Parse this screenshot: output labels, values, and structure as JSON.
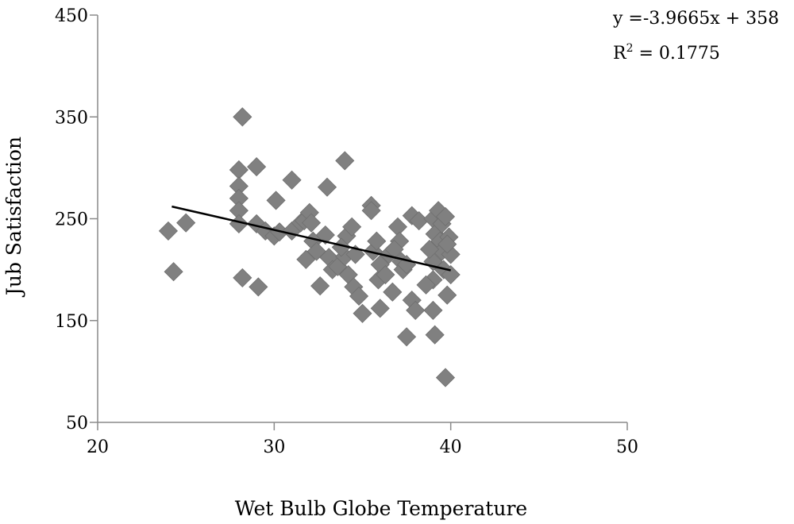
{
  "chart_data": {
    "type": "scatter",
    "xlabel": "Wet Bulb Globe Temperature",
    "ylabel": "Jub Satisfaction",
    "xlim": [
      20,
      50
    ],
    "ylim": [
      50,
      450
    ],
    "x_ticks": [
      20,
      30,
      40,
      50
    ],
    "y_ticks": [
      50,
      150,
      250,
      350,
      450
    ],
    "grid": false,
    "legend": "none",
    "marker": "diamond",
    "point_color": "#808080",
    "trendline": {
      "type": "linear",
      "slope": -3.9665,
      "intercept": 358,
      "x_range": [
        24.2,
        40
      ],
      "color": "#000000",
      "equation_label": "y =-3.9665x + 358",
      "r2_prefix": "R",
      "r2_sup": "2",
      "r2_value": " = 0.1775"
    },
    "points": [
      [
        24,
        238
      ],
      [
        24.3,
        198
      ],
      [
        25,
        246
      ],
      [
        28.2,
        350
      ],
      [
        28,
        298
      ],
      [
        28,
        282
      ],
      [
        28,
        270
      ],
      [
        28,
        258
      ],
      [
        28,
        245
      ],
      [
        28.2,
        192
      ],
      [
        29,
        301
      ],
      [
        29.1,
        183
      ],
      [
        29,
        245
      ],
      [
        29.5,
        238
      ],
      [
        30,
        233
      ],
      [
        30.1,
        268
      ],
      [
        30.3,
        237
      ],
      [
        31,
        288
      ],
      [
        31,
        238
      ],
      [
        31.5,
        246
      ],
      [
        31.7,
        248
      ],
      [
        32,
        256
      ],
      [
        32.1,
        246
      ],
      [
        31.8,
        210
      ],
      [
        32.2,
        228
      ],
      [
        32.4,
        218
      ],
      [
        32.6,
        184
      ],
      [
        33,
        281
      ],
      [
        32.9,
        234
      ],
      [
        33.1,
        212
      ],
      [
        33.3,
        200
      ],
      [
        33.6,
        203
      ],
      [
        34,
        307
      ],
      [
        34,
        213
      ],
      [
        34.1,
        233
      ],
      [
        34.2,
        195
      ],
      [
        34.4,
        242
      ],
      [
        34.5,
        183
      ],
      [
        34.6,
        215
      ],
      [
        34.8,
        174
      ],
      [
        35,
        157
      ],
      [
        35.5,
        263
      ],
      [
        35.5,
        258
      ],
      [
        35.6,
        218
      ],
      [
        35.8,
        228
      ],
      [
        35.9,
        190
      ],
      [
        36,
        162
      ],
      [
        36,
        205
      ],
      [
        36.3,
        195
      ],
      [
        36.5,
        215
      ],
      [
        36.7,
        178
      ],
      [
        37,
        242
      ],
      [
        37.1,
        228
      ],
      [
        37.2,
        208
      ],
      [
        37.3,
        200
      ],
      [
        37.5,
        205
      ],
      [
        37.5,
        134
      ],
      [
        37.8,
        253
      ],
      [
        37.8,
        170
      ],
      [
        38,
        160
      ],
      [
        38.2,
        248
      ],
      [
        39,
        250
      ],
      [
        39.1,
        235
      ],
      [
        39,
        208
      ],
      [
        39,
        190
      ],
      [
        39,
        160
      ],
      [
        39.1,
        136
      ],
      [
        39.3,
        258
      ],
      [
        39.4,
        228
      ],
      [
        39.5,
        245
      ],
      [
        39.5,
        218
      ],
      [
        39.6,
        200
      ],
      [
        39.7,
        252
      ],
      [
        39.7,
        94
      ],
      [
        39.8,
        175
      ],
      [
        39.9,
        232
      ],
      [
        40,
        195
      ],
      [
        40,
        215
      ],
      [
        39.8,
        225
      ],
      [
        38.8,
        220
      ],
      [
        36.8,
        220
      ],
      [
        33.8,
        222
      ],
      [
        38.6,
        185
      ]
    ]
  }
}
